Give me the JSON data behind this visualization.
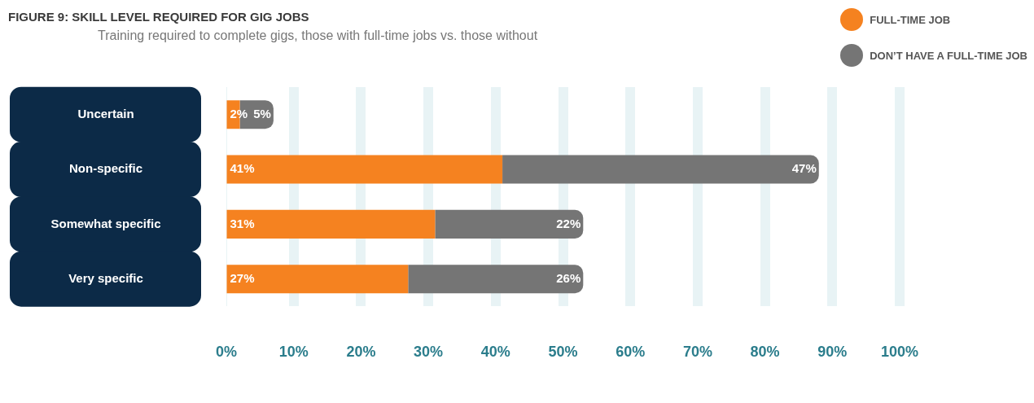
{
  "chart_data": {
    "type": "bar",
    "orientation": "horizontal",
    "stacked": true,
    "title": "FIGURE 9: SKILL LEVEL REQUIRED FOR GIG JOBS",
    "subtitle": "Training required to complete gigs, those with full-time jobs vs. those without",
    "categories": [
      "Uncertain",
      "Non-specific",
      "Somewhat specific",
      "Very specific"
    ],
    "series": [
      {
        "name": "FULL-TIME JOB",
        "color": "#f58220",
        "values": [
          2,
          41,
          31,
          27
        ],
        "value_labels": [
          "2%",
          "41%",
          "31%",
          "27%"
        ]
      },
      {
        "name": "DON’T HAVE A FULL-TIME JOB",
        "color": "#757575",
        "values": [
          5,
          47,
          22,
          26
        ],
        "value_labels": [
          "5%",
          "47%",
          "22%",
          "26%"
        ]
      }
    ],
    "xlim": [
      0,
      100
    ],
    "xticks": [
      {
        "value": 0,
        "label": "0%"
      },
      {
        "value": 10,
        "label": "10%"
      },
      {
        "value": 20,
        "label": "20%"
      },
      {
        "value": 30,
        "label": "30%"
      },
      {
        "value": 40,
        "label": "40%"
      },
      {
        "value": 50,
        "label": "50%"
      },
      {
        "value": 60,
        "label": "60%"
      },
      {
        "value": 70,
        "label": "70%"
      },
      {
        "value": 80,
        "label": "80%"
      },
      {
        "value": 90,
        "label": "90%"
      },
      {
        "value": 100,
        "label": "100%"
      }
    ],
    "grid": "x",
    "legend": "top right"
  }
}
